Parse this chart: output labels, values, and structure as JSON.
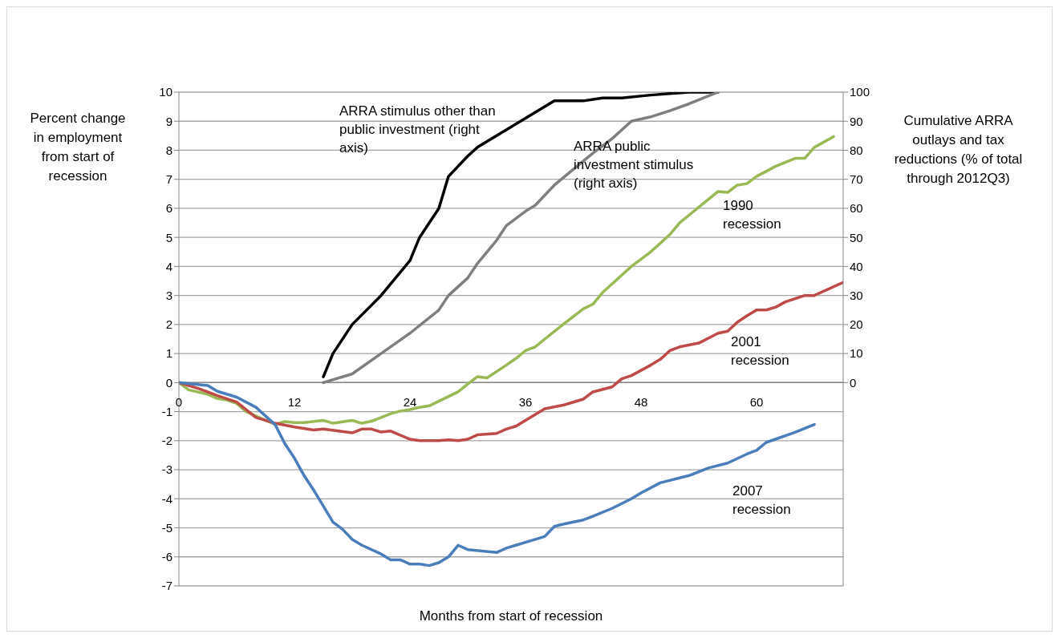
{
  "chart_data": {
    "type": "line",
    "xlabel": "Months from start of recession",
    "ylabel": "Percent change in employment from start of recession",
    "y2label": "Cumulative  ARRA outlays and tax reductions (% of total through 2012Q3)",
    "xlim": [
      0,
      69
    ],
    "xticks": [
      0,
      12,
      24,
      36,
      48,
      60
    ],
    "ylim": [
      -7,
      10
    ],
    "yticks": [
      -7,
      -6,
      -5,
      -4,
      -3,
      -2,
      -1,
      0,
      1,
      2,
      3,
      4,
      5,
      6,
      7,
      8,
      9,
      10
    ],
    "y2lim": [
      -70,
      100
    ],
    "y2ticks": [
      0,
      10,
      20,
      30,
      40,
      50,
      60,
      70,
      80,
      90,
      100
    ],
    "grid": "y",
    "marker": "none",
    "line_style": "solid",
    "series": [
      {
        "name": "ARRA stimulus other than public investment (right axis)",
        "color": "#000000",
        "axis": "y2",
        "x": [
          15,
          16,
          18,
          21,
          24,
          25,
          27,
          28,
          30,
          31,
          34,
          36,
          39,
          42,
          44,
          46,
          49,
          51,
          53,
          56
        ],
        "values": [
          2,
          10,
          20,
          30,
          42,
          50,
          60,
          71,
          78,
          81,
          87,
          91,
          97,
          97,
          98,
          98,
          99,
          99.5,
          100,
          100
        ]
      },
      {
        "name": "ARRA public investment stimulus (right axis)",
        "color": "#7f7f7f",
        "axis": "y2",
        "x": [
          15,
          18,
          21,
          24,
          27,
          28,
          30,
          31,
          33,
          34,
          36,
          37,
          39,
          43,
          45,
          47,
          49,
          51,
          53,
          56
        ],
        "values": [
          0,
          3,
          10,
          17,
          25,
          30,
          36,
          41,
          49,
          54,
          59,
          61,
          68,
          79,
          84,
          90,
          91.5,
          93.6,
          96,
          100
        ]
      },
      {
        "name": "1990 recession",
        "color": "#98b954",
        "x": [
          0,
          1,
          3,
          4,
          5,
          6,
          7,
          9,
          10,
          11,
          12,
          13,
          15,
          16,
          18,
          19,
          20,
          22,
          23,
          24,
          25,
          26,
          29,
          30,
          31,
          32,
          34,
          35,
          36,
          37,
          38,
          40,
          42,
          43,
          44,
          46,
          47,
          49,
          50,
          51,
          52,
          54,
          56,
          57,
          58,
          59,
          60,
          62,
          64,
          65,
          66,
          68
        ],
        "values": [
          0,
          -0.25,
          -0.4,
          -0.55,
          -0.6,
          -0.72,
          -1.0,
          -1.3,
          -1.44,
          -1.34,
          -1.38,
          -1.38,
          -1.3,
          -1.4,
          -1.3,
          -1.4,
          -1.33,
          -1.07,
          -0.98,
          -0.93,
          -0.85,
          -0.8,
          -0.32,
          -0.05,
          0.2,
          0.16,
          0.6,
          0.83,
          1.1,
          1.23,
          1.5,
          2.03,
          2.54,
          2.7,
          3.1,
          3.7,
          4.0,
          4.5,
          4.8,
          5.1,
          5.5,
          6.04,
          6.58,
          6.55,
          6.8,
          6.85,
          7.1,
          7.45,
          7.72,
          7.72,
          8.1,
          8.47
        ]
      },
      {
        "name": "2001 recession",
        "color": "#be4b48",
        "x": [
          0,
          2,
          4,
          6,
          8,
          10,
          12,
          14,
          15,
          18,
          19,
          20,
          21,
          22,
          24,
          25,
          27,
          28,
          29,
          30,
          31,
          33,
          34,
          35,
          36,
          38,
          40,
          42,
          43,
          45,
          46,
          47,
          49,
          50,
          51,
          52,
          54,
          56,
          57,
          58,
          59,
          60,
          61,
          62,
          63,
          65,
          66,
          69
        ],
        "values": [
          0,
          -0.2,
          -0.45,
          -0.67,
          -1.2,
          -1.4,
          -1.53,
          -1.63,
          -1.6,
          -1.73,
          -1.6,
          -1.6,
          -1.7,
          -1.67,
          -1.95,
          -2.0,
          -2.0,
          -1.97,
          -2.0,
          -1.95,
          -1.8,
          -1.75,
          -1.6,
          -1.5,
          -1.3,
          -0.9,
          -0.77,
          -0.57,
          -0.32,
          -0.15,
          0.13,
          0.24,
          0.6,
          0.8,
          1.1,
          1.23,
          1.36,
          1.7,
          1.77,
          2.08,
          2.3,
          2.5,
          2.5,
          2.6,
          2.78,
          3.0,
          3.0,
          3.45
        ]
      },
      {
        "name": "2007 recession",
        "color": "#4a7ebb",
        "x": [
          0,
          3,
          4,
          6,
          8,
          10,
          11,
          12,
          13,
          14,
          16,
          17,
          18,
          19,
          21,
          22,
          23,
          24,
          25,
          26,
          27,
          28,
          29,
          30,
          33,
          34,
          35,
          36,
          38,
          39,
          40,
          42,
          43,
          45,
          47,
          48,
          50,
          53,
          55,
          57,
          59,
          60,
          61,
          64,
          66
        ],
        "values": [
          0,
          -0.1,
          -0.3,
          -0.5,
          -0.85,
          -1.45,
          -2.1,
          -2.6,
          -3.2,
          -3.7,
          -4.8,
          -5.05,
          -5.4,
          -5.6,
          -5.9,
          -6.1,
          -6.1,
          -6.25,
          -6.25,
          -6.3,
          -6.2,
          -6.0,
          -5.6,
          -5.75,
          -5.85,
          -5.7,
          -5.6,
          -5.5,
          -5.3,
          -4.95,
          -4.87,
          -4.73,
          -4.6,
          -4.33,
          -4.0,
          -3.8,
          -3.45,
          -3.2,
          -2.94,
          -2.77,
          -2.46,
          -2.33,
          -2.06,
          -1.71,
          -1.44
        ]
      }
    ]
  }
}
